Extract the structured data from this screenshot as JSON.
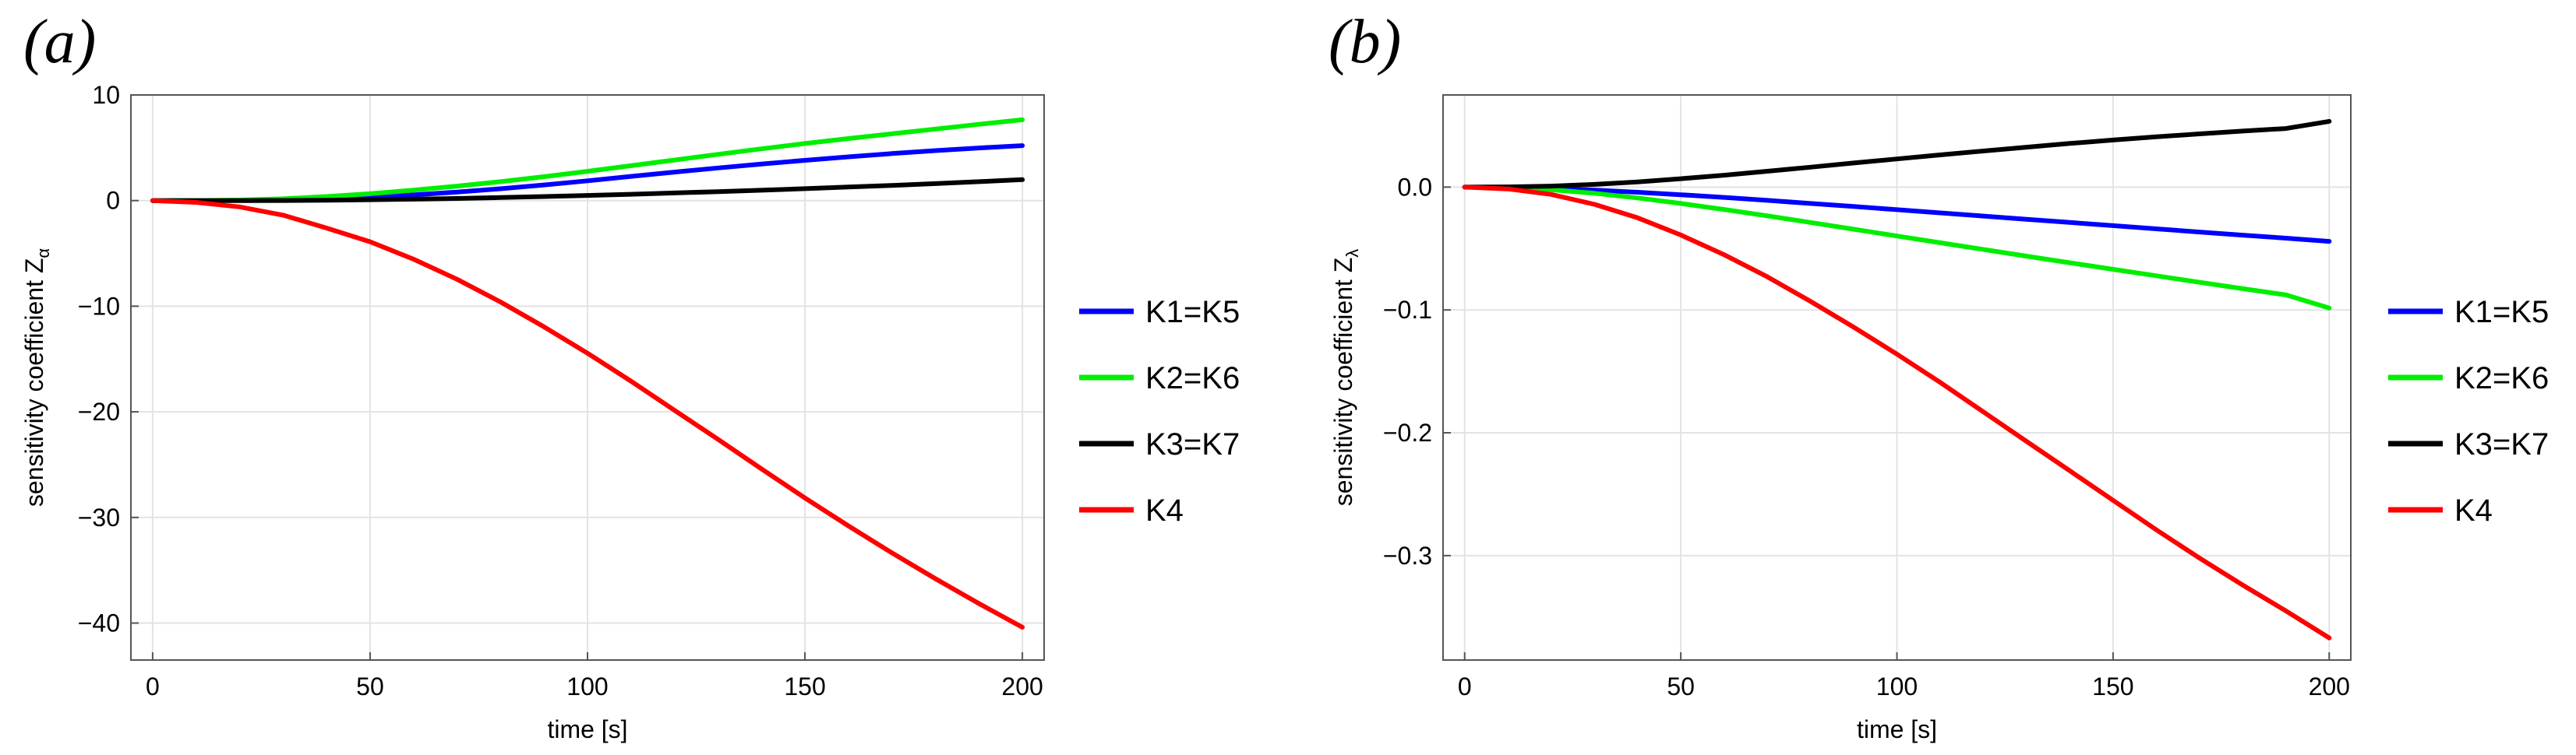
{
  "panels": [
    "(a)",
    "(b)"
  ],
  "chart_data": [
    {
      "type": "line",
      "title": "",
      "xlabel": "time [s]",
      "ylabel": "sensitivity coefficient Z",
      "ylabel_subscript": "α",
      "xlim": [
        -5,
        205
      ],
      "ylim": [
        -43.5,
        10
      ],
      "xticks": [
        0,
        50,
        100,
        150,
        200
      ],
      "xtick_labels": [
        "0",
        "50",
        "100",
        "150",
        "200"
      ],
      "yticks": [
        10,
        0,
        -10,
        -20,
        -30,
        -40
      ],
      "ytick_labels": [
        "10",
        "0",
        "−10",
        "−20",
        "−30",
        "−40"
      ],
      "grid": true,
      "legend_position": "right",
      "x": [
        0,
        10,
        20,
        30,
        40,
        50,
        60,
        70,
        80,
        90,
        100,
        110,
        120,
        130,
        140,
        150,
        160,
        170,
        180,
        190,
        200
      ],
      "series": [
        {
          "name": "K1=K5",
          "color": "#0000ff",
          "values": [
            0,
            0,
            0.02,
            0.08,
            0.18,
            0.33,
            0.54,
            0.81,
            1.12,
            1.48,
            1.87,
            2.29,
            2.7,
            3.09,
            3.46,
            3.81,
            4.14,
            4.45,
            4.73,
            4.98,
            5.2
          ]
        },
        {
          "name": "K2=K6",
          "color": "#00ee00",
          "values": [
            0,
            0.01,
            0.05,
            0.17,
            0.38,
            0.65,
            0.99,
            1.37,
            1.79,
            2.26,
            2.77,
            3.3,
            3.84,
            4.38,
            4.9,
            5.4,
            5.87,
            6.32,
            6.77,
            7.22,
            7.65
          ]
        },
        {
          "name": "K3=K7",
          "color": "#000000",
          "values": [
            0,
            0,
            0,
            0.01,
            0.04,
            0.08,
            0.13,
            0.2,
            0.29,
            0.38,
            0.49,
            0.6,
            0.72,
            0.85,
            0.98,
            1.13,
            1.28,
            1.44,
            1.61,
            1.79,
            1.98
          ]
        },
        {
          "name": "K4",
          "color": "#ff0000",
          "values": [
            0,
            -0.17,
            -0.6,
            -1.38,
            -2.6,
            -3.9,
            -5.55,
            -7.45,
            -9.6,
            -11.95,
            -14.45,
            -17.1,
            -19.85,
            -22.6,
            -25.4,
            -28.15,
            -30.8,
            -33.35,
            -35.8,
            -38.15,
            -40.4
          ]
        }
      ]
    },
    {
      "type": "line",
      "title": "",
      "xlabel": "time [s]",
      "ylabel": "sensitivity coefficient Z",
      "ylabel_subscript": "λ",
      "xlim": [
        -5,
        205
      ],
      "ylim": [
        -0.385,
        0.075
      ],
      "xticks": [
        0,
        50,
        100,
        150,
        200
      ],
      "xtick_labels": [
        "0",
        "50",
        "100",
        "150",
        "200"
      ],
      "yticks": [
        0.0,
        -0.1,
        -0.2,
        -0.3
      ],
      "ytick_labels": [
        "0.0",
        "−0.1",
        "−0.2",
        "−0.3"
      ],
      "grid": true,
      "legend_position": "right",
      "x": [
        0,
        10,
        20,
        30,
        40,
        50,
        60,
        70,
        80,
        90,
        100,
        110,
        120,
        130,
        140,
        150,
        160,
        170,
        180,
        190,
        200
      ],
      "series": [
        {
          "name": "K1=K5",
          "color": "#0000ff",
          "values": [
            0,
            -0.0003,
            -0.0012,
            -0.0025,
            -0.0042,
            -0.0062,
            -0.0084,
            -0.0108,
            -0.0133,
            -0.0158,
            -0.0184,
            -0.021,
            -0.0236,
            -0.0262,
            -0.0288,
            -0.0314,
            -0.034,
            -0.0366,
            -0.0391,
            -0.0416,
            -0.0442
          ]
        },
        {
          "name": "K2=K6",
          "color": "#00ee00",
          "values": [
            0,
            -0.0005,
            -0.0022,
            -0.005,
            -0.0088,
            -0.0133,
            -0.0182,
            -0.0234,
            -0.0288,
            -0.0343,
            -0.0398,
            -0.0453,
            -0.0508,
            -0.0562,
            -0.0616,
            -0.0669,
            -0.0722,
            -0.0775,
            -0.0827,
            -0.0878,
            -0.0985
          ]
        },
        {
          "name": "K3=K7",
          "color": "#000000",
          "values": [
            0,
            0.0002,
            0.0008,
            0.0022,
            0.0042,
            0.0068,
            0.0097,
            0.0129,
            0.0162,
            0.0196,
            0.0229,
            0.0262,
            0.0294,
            0.0325,
            0.0355,
            0.0383,
            0.0409,
            0.0433,
            0.0456,
            0.0477,
            0.0535
          ]
        },
        {
          "name": "K4",
          "color": "#ff0000",
          "values": [
            0,
            -0.0015,
            -0.006,
            -0.014,
            -0.025,
            -0.039,
            -0.055,
            -0.073,
            -0.093,
            -0.114,
            -0.136,
            -0.159,
            -0.183,
            -0.207,
            -0.231,
            -0.255,
            -0.279,
            -0.302,
            -0.324,
            -0.345,
            -0.367
          ]
        }
      ]
    }
  ]
}
